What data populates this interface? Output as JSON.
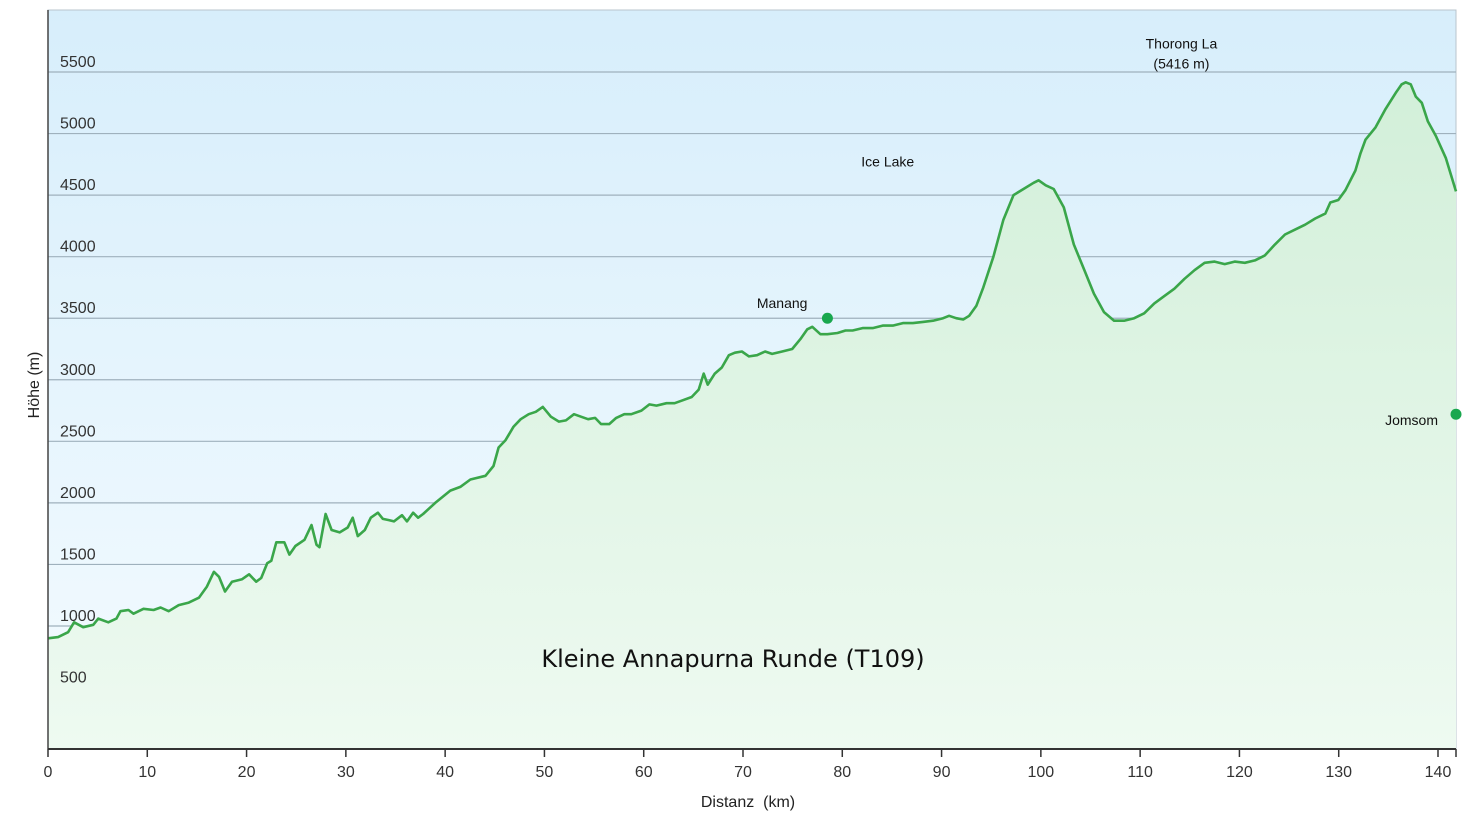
{
  "chart_data": {
    "type": "area",
    "title": "Kleine Annapurna Runde (T109)",
    "xlabel": "Distanz  (km)",
    "ylabel": "Höhe (m)",
    "xlim": [
      0,
      140
    ],
    "ylim": [
      0,
      6000
    ],
    "x_ticks": [
      0,
      10,
      20,
      30,
      40,
      50,
      60,
      70,
      80,
      90,
      100,
      110,
      120,
      130,
      140
    ],
    "y_ticks": [
      500,
      1000,
      1500,
      2000,
      2500,
      3000,
      3500,
      4000,
      4500,
      5000,
      5500
    ],
    "grid": true,
    "colors": {
      "line": "#3aa64a",
      "fill_top": "#d2efd9",
      "bg_top": "#d7eefb",
      "bg_bottom": "#f4fbff",
      "marker": "#19a74e"
    },
    "series": [
      {
        "points": [
          [
            0,
            900
          ],
          [
            1,
            910
          ],
          [
            2,
            950
          ],
          [
            2.6,
            1030
          ],
          [
            3.5,
            990
          ],
          [
            4.5,
            1010
          ],
          [
            5,
            1060
          ],
          [
            6,
            1030
          ],
          [
            6.8,
            1060
          ],
          [
            7.2,
            1120
          ],
          [
            8,
            1130
          ],
          [
            8.5,
            1100
          ],
          [
            9.5,
            1140
          ],
          [
            10.5,
            1130
          ],
          [
            11.2,
            1150
          ],
          [
            12,
            1120
          ],
          [
            13,
            1170
          ],
          [
            14,
            1190
          ],
          [
            15,
            1230
          ],
          [
            15.8,
            1320
          ],
          [
            16.5,
            1440
          ],
          [
            17,
            1400
          ],
          [
            17.6,
            1280
          ],
          [
            18.3,
            1360
          ],
          [
            19.3,
            1380
          ],
          [
            20,
            1420
          ],
          [
            20.7,
            1360
          ],
          [
            21.2,
            1390
          ],
          [
            21.8,
            1510
          ],
          [
            22.2,
            1530
          ],
          [
            22.7,
            1680
          ],
          [
            23.5,
            1680
          ],
          [
            24,
            1580
          ],
          [
            24.6,
            1650
          ],
          [
            25.5,
            1700
          ],
          [
            26.2,
            1820
          ],
          [
            26.7,
            1660
          ],
          [
            27,
            1640
          ],
          [
            27.6,
            1910
          ],
          [
            28.2,
            1780
          ],
          [
            29,
            1760
          ],
          [
            29.8,
            1800
          ],
          [
            30.3,
            1880
          ],
          [
            30.8,
            1730
          ],
          [
            31.5,
            1780
          ],
          [
            32.1,
            1880
          ],
          [
            32.8,
            1920
          ],
          [
            33.3,
            1870
          ],
          [
            33.9,
            1860
          ],
          [
            34.4,
            1850
          ],
          [
            35.2,
            1900
          ],
          [
            35.7,
            1850
          ],
          [
            36.3,
            1920
          ],
          [
            36.8,
            1880
          ],
          [
            37.3,
            1910
          ],
          [
            38.5,
            2000
          ],
          [
            40,
            2100
          ],
          [
            41,
            2130
          ],
          [
            42,
            2190
          ],
          [
            43.5,
            2220
          ],
          [
            44.3,
            2300
          ],
          [
            44.8,
            2450
          ],
          [
            45.5,
            2510
          ],
          [
            46.3,
            2620
          ],
          [
            47,
            2680
          ],
          [
            47.8,
            2720
          ],
          [
            48.5,
            2740
          ],
          [
            49.2,
            2780
          ],
          [
            50,
            2700
          ],
          [
            50.8,
            2660
          ],
          [
            51.5,
            2670
          ],
          [
            52.3,
            2720
          ],
          [
            53,
            2700
          ],
          [
            53.7,
            2680
          ],
          [
            54.4,
            2690
          ],
          [
            55,
            2640
          ],
          [
            55.8,
            2640
          ],
          [
            56.5,
            2690
          ],
          [
            57.3,
            2720
          ],
          [
            58,
            2720
          ],
          [
            59,
            2750
          ],
          [
            59.8,
            2800
          ],
          [
            60.5,
            2790
          ],
          [
            61.5,
            2810
          ],
          [
            62.3,
            2810
          ],
          [
            63,
            2830
          ],
          [
            64,
            2860
          ],
          [
            64.7,
            2920
          ],
          [
            65.2,
            3050
          ],
          [
            65.6,
            2960
          ],
          [
            66.3,
            3050
          ],
          [
            67,
            3100
          ],
          [
            67.7,
            3200
          ],
          [
            68.3,
            3220
          ],
          [
            69,
            3230
          ],
          [
            69.7,
            3190
          ],
          [
            70.5,
            3200
          ],
          [
            71.3,
            3230
          ],
          [
            72,
            3210
          ],
          [
            73,
            3230
          ],
          [
            74,
            3250
          ],
          [
            74.8,
            3330
          ],
          [
            75.5,
            3410
          ],
          [
            76,
            3430
          ],
          [
            76.8,
            3370
          ],
          [
            77.5,
            3370
          ],
          [
            78.5,
            3380
          ],
          [
            79.3,
            3400
          ],
          [
            80,
            3400
          ],
          [
            81,
            3420
          ],
          [
            82,
            3420
          ],
          [
            83,
            3440
          ],
          [
            84,
            3440
          ],
          [
            85,
            3460
          ],
          [
            86,
            3460
          ],
          [
            87,
            3470
          ],
          [
            88,
            3480
          ],
          [
            89,
            3500
          ],
          [
            89.6,
            3520
          ],
          [
            90.3,
            3500
          ],
          [
            91,
            3490
          ],
          [
            91.6,
            3520
          ],
          [
            92.3,
            3600
          ],
          [
            93,
            3750
          ],
          [
            94,
            4000
          ],
          [
            95,
            4300
          ],
          [
            96,
            4500
          ],
          [
            97,
            4550
          ],
          [
            98,
            4600
          ],
          [
            98.5,
            4620
          ],
          [
            99.2,
            4580
          ],
          [
            100,
            4550
          ],
          [
            101,
            4400
          ],
          [
            102,
            4100
          ],
          [
            103,
            3900
          ],
          [
            104,
            3700
          ],
          [
            105,
            3550
          ],
          [
            106,
            3480
          ],
          [
            107,
            3480
          ],
          [
            108,
            3500
          ],
          [
            109,
            3540
          ],
          [
            110,
            3620
          ],
          [
            111,
            3680
          ],
          [
            112,
            3740
          ],
          [
            113,
            3820
          ],
          [
            114,
            3890
          ],
          [
            115,
            3950
          ],
          [
            116,
            3960
          ],
          [
            117,
            3940
          ],
          [
            118,
            3960
          ],
          [
            119,
            3950
          ],
          [
            120,
            3970
          ],
          [
            121,
            4010
          ],
          [
            122,
            4100
          ],
          [
            123,
            4180
          ],
          [
            124,
            4220
          ],
          [
            125,
            4260
          ],
          [
            126,
            4310
          ],
          [
            127,
            4350
          ],
          [
            127.5,
            4440
          ],
          [
            128.3,
            4460
          ],
          [
            129,
            4540
          ],
          [
            130,
            4700
          ],
          [
            130.5,
            4840
          ],
          [
            131,
            4950
          ],
          [
            132,
            5050
          ],
          [
            133,
            5200
          ],
          [
            134,
            5330
          ],
          [
            134.6,
            5400
          ],
          [
            135,
            5416
          ],
          [
            135.5,
            5400
          ],
          [
            136,
            5300
          ],
          [
            136.6,
            5250
          ],
          [
            137.2,
            5100
          ],
          [
            138,
            4980
          ],
          [
            139,
            4800
          ],
          [
            140,
            4530
          ]
        ]
      }
    ],
    "markers": [
      {
        "x": 77.5,
        "y": 3500,
        "label": "Manang"
      },
      {
        "x": 140,
        "y": 2720,
        "label": "Jomsom"
      }
    ],
    "annotations": [
      {
        "x": 83.5,
        "y": 4620,
        "label": "Ice Lake"
      },
      {
        "x": 112.7,
        "y": 5416,
        "label": "Thorong La",
        "sublabel": "(5416 m)"
      }
    ]
  }
}
